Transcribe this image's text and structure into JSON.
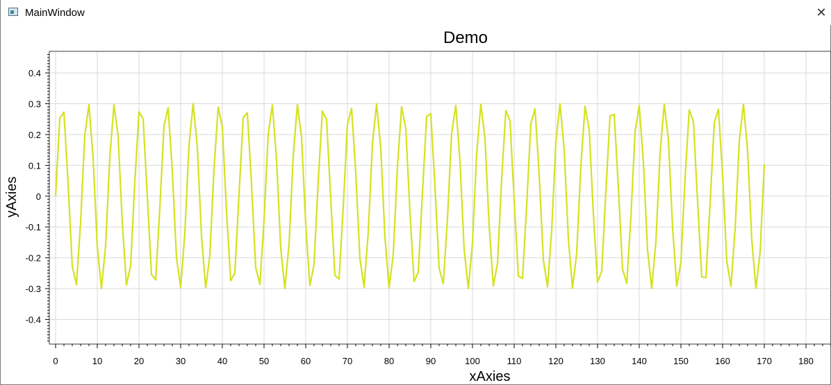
{
  "window": {
    "title": "MainWindow",
    "icon": "app-window-icon"
  },
  "chart_data": {
    "type": "line",
    "title": "Demo",
    "xlabel": "xAxies",
    "ylabel": "yAxies",
    "xlim": [
      -1.5,
      186
    ],
    "ylim": [
      -0.48,
      0.47
    ],
    "x_ticks": [
      0,
      10,
      20,
      30,
      40,
      50,
      60,
      70,
      80,
      90,
      100,
      110,
      120,
      130,
      140,
      150,
      160,
      170,
      180
    ],
    "y_ticks": [
      -0.4,
      -0.3,
      -0.2,
      -0.1,
      0,
      0.1,
      0.2,
      0.3,
      0.4
    ],
    "y_tick_labels": [
      "-0.4",
      "-0.3",
      "-0.2",
      "-0.1",
      "0",
      "0.1",
      "0.2",
      "0.3",
      "0.4"
    ],
    "grid": true,
    "series": [
      {
        "color": "#d4e21f",
        "function": "0.3*sin(x)",
        "x": [
          0,
          1,
          2,
          3,
          4,
          5,
          6,
          7,
          8,
          9,
          10,
          11,
          12,
          13,
          14,
          15,
          16,
          17,
          18,
          19,
          20,
          21,
          22,
          23,
          24,
          25,
          26,
          27,
          28,
          29,
          30,
          31,
          32,
          33,
          34,
          35,
          36,
          37,
          38,
          39,
          40,
          41,
          42,
          43,
          44,
          45,
          46,
          47,
          48,
          49,
          50,
          51,
          52,
          53,
          54,
          55,
          56,
          57,
          58,
          59,
          60,
          61,
          62,
          63,
          64,
          65,
          66,
          67,
          68,
          69,
          70,
          71,
          72,
          73,
          74,
          75,
          76,
          77,
          78,
          79,
          80,
          81,
          82,
          83,
          84,
          85,
          86,
          87,
          88,
          89,
          90,
          91,
          92,
          93,
          94,
          95,
          96,
          97,
          98,
          99,
          100,
          101,
          102,
          103,
          104,
          105,
          106,
          107,
          108,
          109,
          110,
          111,
          112,
          113,
          114,
          115,
          116,
          117,
          118,
          119,
          120,
          121,
          122,
          123,
          124,
          125,
          126,
          127,
          128,
          129,
          130,
          131,
          132,
          133,
          134,
          135,
          136,
          137,
          138,
          139,
          140,
          141,
          142,
          143,
          144,
          145,
          146,
          147,
          148,
          149,
          150,
          151,
          152,
          153,
          154,
          155,
          156,
          157,
          158,
          159,
          160,
          161,
          162,
          163,
          164,
          165,
          166,
          167,
          168,
          169,
          170
        ]
      }
    ]
  }
}
